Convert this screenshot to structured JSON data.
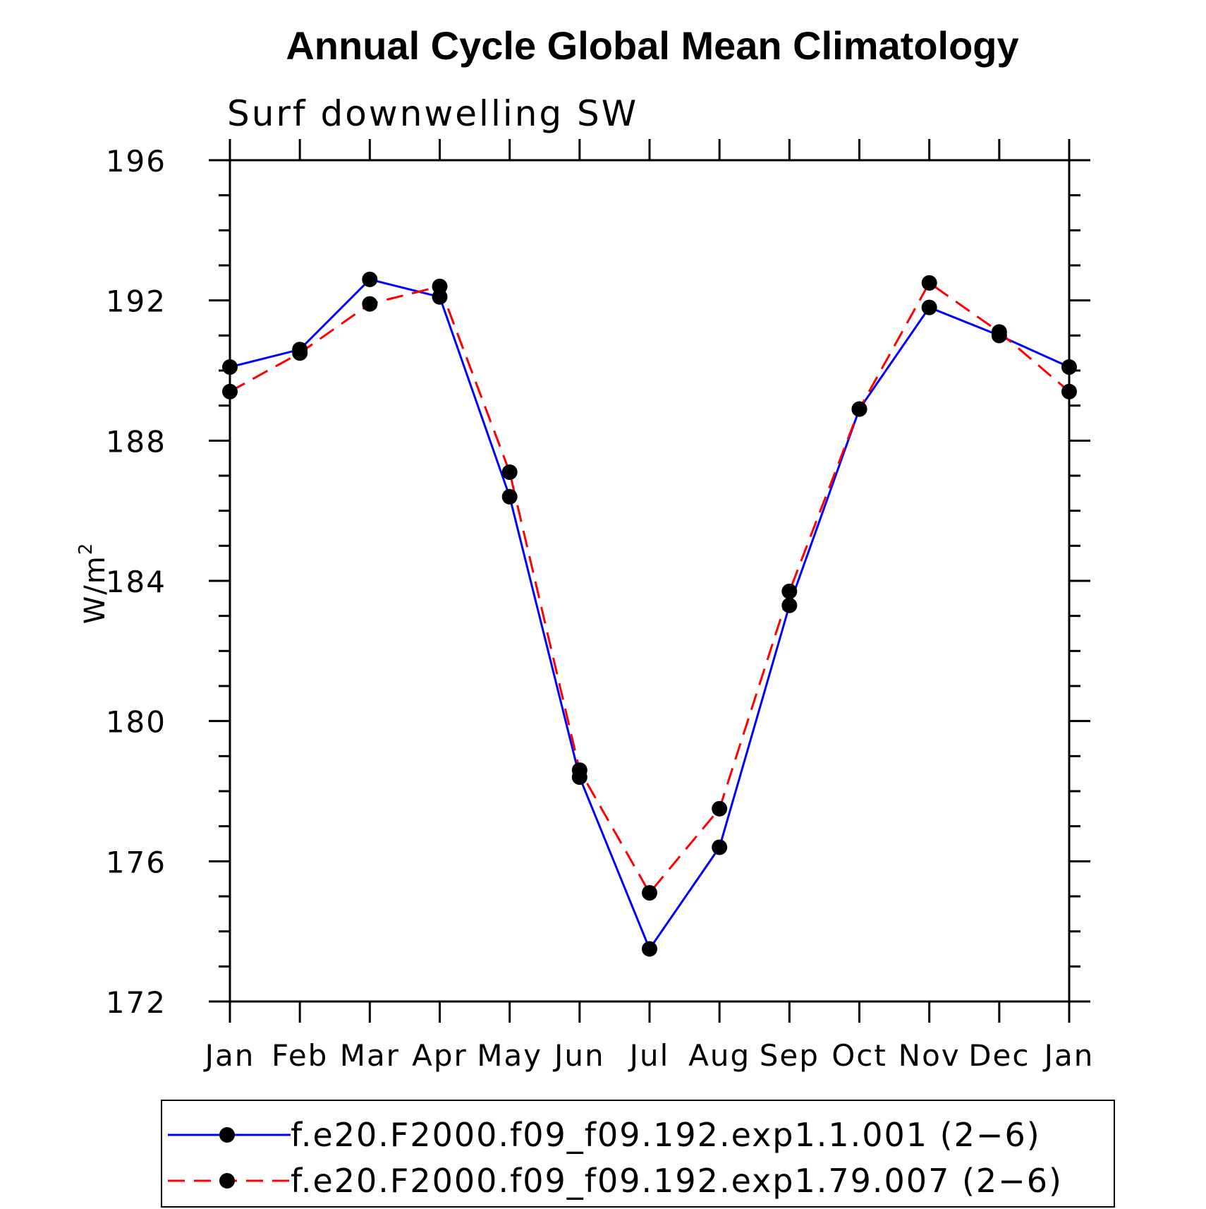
{
  "chart_data": {
    "type": "line",
    "title": "Annual Cycle Global Mean Climatology",
    "subtitle": "Surf downwelling SW",
    "ylabel": "W/m",
    "ylabel_sup": "2",
    "ylim": [
      172,
      196
    ],
    "yticks": [
      "172",
      "176",
      "180",
      "184",
      "188",
      "192",
      "196"
    ],
    "ytick_values": [
      172,
      176,
      180,
      184,
      188,
      192,
      196
    ],
    "categories": [
      "Jan",
      "Feb",
      "Mar",
      "Apr",
      "May",
      "Jun",
      "Jul",
      "Aug",
      "Sep",
      "Oct",
      "Nov",
      "Dec",
      "Jan"
    ],
    "grid": false,
    "legend_position": "bottom",
    "series": [
      {
        "name": "f.e20.F2000.f09_f09.192.exp1.1.001 (2−6)",
        "color": "#0000ff",
        "dash": "solid",
        "marker": "filled-circle",
        "values": [
          190.1,
          190.6,
          192.6,
          192.1,
          186.4,
          178.4,
          173.5,
          176.4,
          183.3,
          188.9,
          191.8,
          191.0,
          190.1
        ]
      },
      {
        "name": "f.e20.F2000.f09_f09.192.exp1.79.007 (2−6)",
        "color": "#ff0000",
        "dash": "dashed",
        "marker": "filled-circle",
        "values": [
          189.4,
          190.5,
          191.9,
          192.4,
          187.1,
          178.6,
          175.1,
          177.5,
          183.7,
          188.9,
          192.5,
          191.1,
          189.4
        ]
      }
    ]
  }
}
